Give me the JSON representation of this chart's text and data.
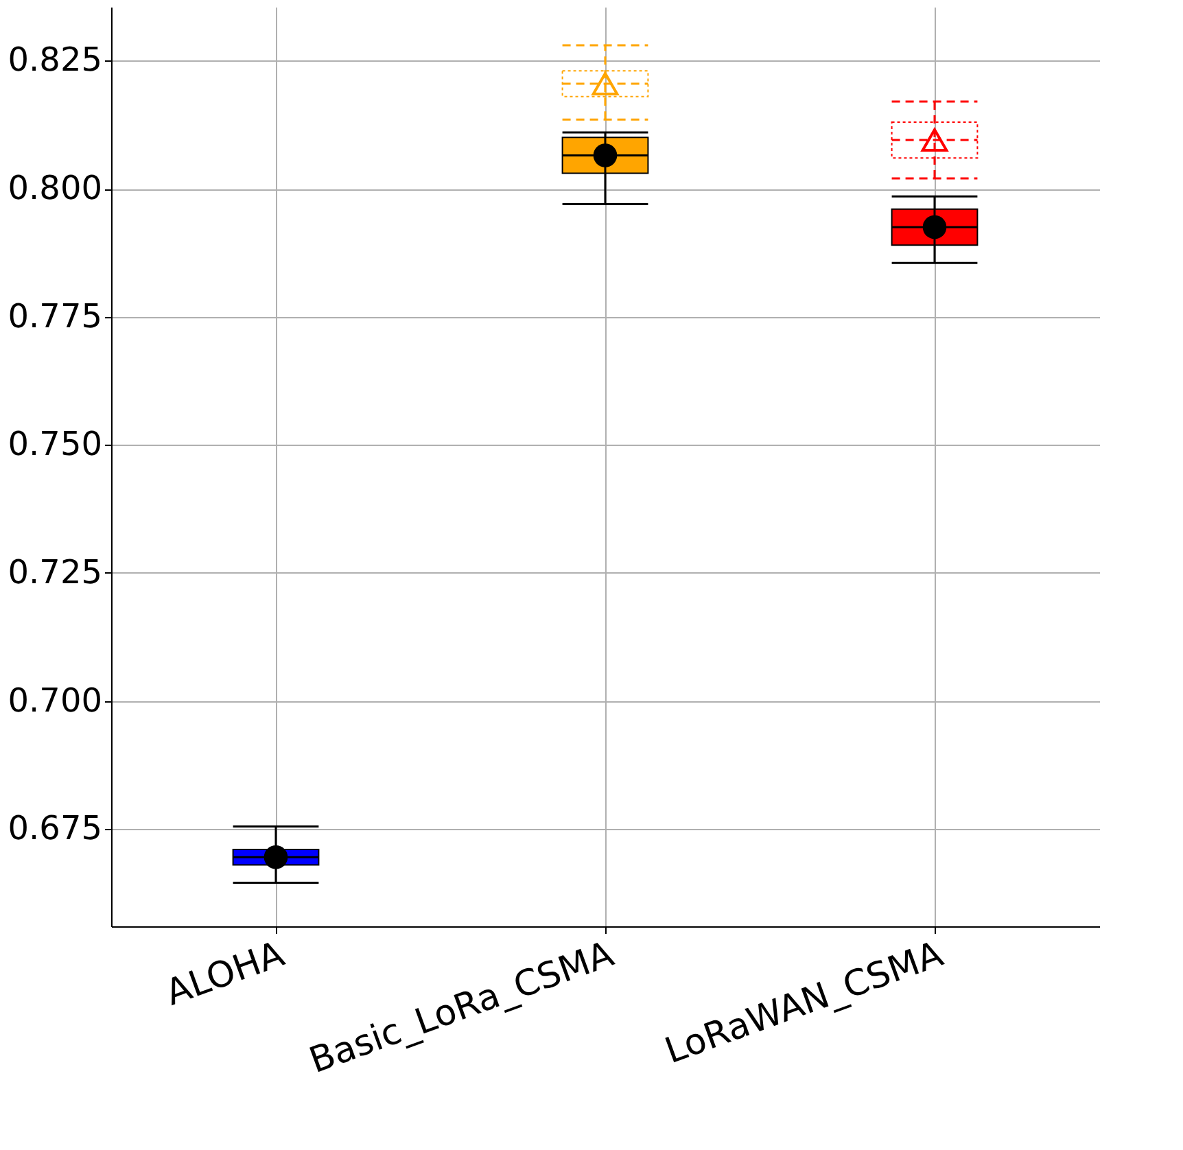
{
  "chart_data": {
    "type": "box",
    "categories": [
      "ALOHA",
      "Basic_LoRa_CSMA",
      "LoRaWAN_CSMA"
    ],
    "ylim": [
      0.656,
      0.8355
    ],
    "yticks": [
      {
        "value": 0.675,
        "label": "0.675"
      },
      {
        "value": 0.7,
        "label": "0.700"
      },
      {
        "value": 0.725,
        "label": "0.725"
      },
      {
        "value": 0.75,
        "label": "0.750"
      },
      {
        "value": 0.775,
        "label": "0.775"
      },
      {
        "value": 0.8,
        "label": "0.800"
      },
      {
        "value": 0.825,
        "label": "0.825"
      }
    ],
    "grid": true,
    "series": [
      {
        "colors": [
          "#0000ff",
          "#ffa500",
          "#ff0000"
        ],
        "marker": "circle",
        "line_style": "solid",
        "boxes": [
          {
            "low": 0.6645,
            "q1": 0.668,
            "median": 0.6695,
            "q3": 0.671,
            "high": 0.6755,
            "mean": 0.6695
          },
          {
            "low": 0.797,
            "q1": 0.803,
            "median": 0.8065,
            "q3": 0.81,
            "high": 0.811,
            "mean": 0.8065
          },
          {
            "low": 0.7855,
            "q1": 0.789,
            "median": 0.7925,
            "q3": 0.796,
            "high": 0.7985,
            "mean": 0.7925
          }
        ]
      },
      {
        "colors": [
          "#0000ff",
          "#ffa500",
          "#ff0000"
        ],
        "marker": "triangle",
        "line_style": "dashed",
        "boxes": [
          null,
          {
            "low": 0.8135,
            "q1": 0.818,
            "median": 0.8205,
            "q3": 0.823,
            "high": 0.828,
            "mean": 0.8205
          },
          {
            "low": 0.802,
            "q1": 0.806,
            "median": 0.8095,
            "q3": 0.813,
            "high": 0.817,
            "mean": 0.8095
          }
        ]
      }
    ]
  }
}
